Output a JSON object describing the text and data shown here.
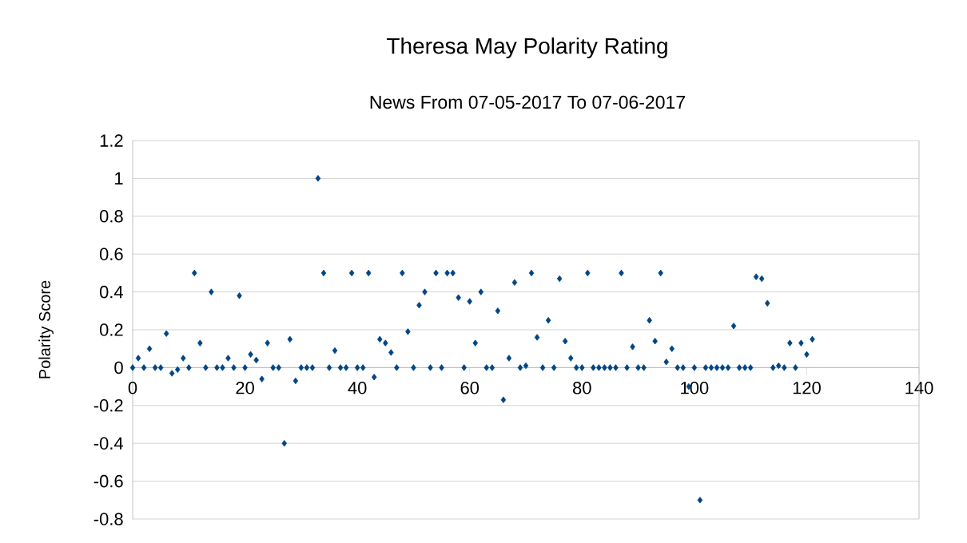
{
  "chart_data": {
    "type": "scatter",
    "title": "Theresa May Polarity Rating",
    "subtitle": "News From 07-05-2017 To 07-06-2017",
    "ylabel": "Polarity Score",
    "x": [
      0,
      1,
      2,
      3,
      4,
      5,
      6,
      7,
      8,
      9,
      10,
      11,
      12,
      13,
      14,
      15,
      16,
      17,
      18,
      19,
      20,
      21,
      22,
      23,
      24,
      25,
      26,
      27,
      28,
      29,
      30,
      31,
      32,
      33,
      34,
      35,
      36,
      37,
      38,
      39,
      40,
      41,
      42,
      43,
      44,
      45,
      46,
      47,
      48,
      49,
      50,
      51,
      52,
      53,
      54,
      55,
      56,
      57,
      58,
      59,
      60,
      61,
      62,
      63,
      64,
      65,
      66,
      67,
      68,
      69,
      70,
      71,
      72,
      73,
      74,
      75,
      76,
      77,
      78,
      79,
      80,
      81,
      82,
      83,
      84,
      85,
      86,
      87,
      88,
      89,
      90,
      91,
      92,
      93,
      94,
      95,
      96,
      97,
      98,
      99,
      100,
      101,
      102,
      103,
      104,
      105,
      106,
      107,
      108,
      109,
      110,
      111,
      112,
      113,
      114,
      115,
      116,
      117,
      118,
      119,
      120,
      121
    ],
    "values": [
      0,
      0.05,
      0,
      0.1,
      0,
      0,
      0.18,
      -0.03,
      -0.01,
      0.05,
      0,
      0.5,
      0.13,
      0,
      0.4,
      0,
      0,
      0.05,
      0,
      0.38,
      0,
      0.07,
      0.04,
      -0.06,
      0.13,
      0,
      0,
      -0.4,
      0.15,
      -0.07,
      0,
      0,
      0,
      1,
      0.5,
      0,
      0.09,
      0,
      0,
      0.5,
      0,
      0,
      0.5,
      -0.05,
      0.15,
      0.13,
      0.08,
      0,
      0.5,
      0.19,
      0,
      0.33,
      0.4,
      0,
      0.5,
      0,
      0.5,
      0.5,
      0.37,
      0,
      0.35,
      0.13,
      0.4,
      0,
      0,
      0.3,
      -0.17,
      0.05,
      0.45,
      0,
      0.01,
      0.5,
      0.16,
      0,
      0.25,
      0,
      0.47,
      0.14,
      0.05,
      0,
      0,
      0.5,
      0,
      0,
      0,
      0,
      0,
      0.5,
      0,
      0.11,
      0,
      0,
      0.25,
      0.14,
      0.5,
      0.03,
      0.1,
      0,
      0,
      -0.1,
      0,
      -0.7,
      0,
      0,
      0,
      0,
      0,
      0.22,
      0,
      0,
      0,
      0.48,
      0.47,
      0.34,
      0,
      0.01,
      0,
      0.13,
      0,
      0.13,
      0.07,
      0.15
    ],
    "color": "#004586",
    "marker": "diamond",
    "grid": "y",
    "xlim": [
      0,
      140
    ],
    "xticks": [
      0,
      20,
      40,
      60,
      80,
      100,
      120,
      140
    ],
    "ylim": [
      -0.8,
      1.2
    ],
    "yticks": [
      -0.8,
      -0.6,
      -0.4,
      -0.2,
      0,
      0.2,
      0.4,
      0.6,
      0.8,
      1,
      1.2
    ]
  }
}
